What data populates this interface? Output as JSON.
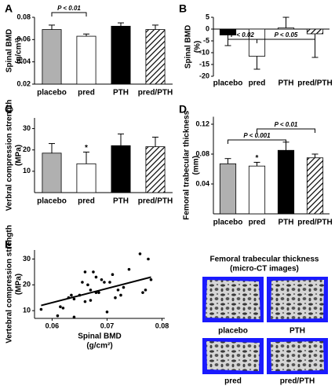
{
  "chart_data": [
    {
      "type": "bar",
      "panel": "A",
      "ylabel": [
        "Spinal BMD",
        "(g/cm²)"
      ],
      "categories": [
        "placebo",
        "pred",
        "PTH",
        "pred/PTH"
      ],
      "values": [
        0.069,
        0.063,
        0.072,
        0.069
      ],
      "errors": [
        0.004,
        0.002,
        0.003,
        0.004
      ],
      "colors": [
        "#b0b0b0",
        "#ffffff",
        "#000000",
        "hatch"
      ],
      "ylim": [
        0.02,
        0.08
      ],
      "yticks": [
        0.02,
        0.04,
        0.06,
        0.08
      ],
      "annotations": [
        "P < 0.01"
      ]
    },
    {
      "type": "bar",
      "panel": "B",
      "ylabel": [
        "Spinal BMD",
        "(%)"
      ],
      "categories": [
        "placebo",
        "pred",
        "PTH",
        "pred/PTH"
      ],
      "values": [
        -2.5,
        -11.5,
        0.5,
        -2
      ],
      "errors": [
        4.5,
        5.5,
        4.5,
        10
      ],
      "colors": [
        "#000000",
        "#ffffff",
        "#ffffff",
        "hatch"
      ],
      "ylim": [
        -20,
        5
      ],
      "yticks": [
        5,
        0,
        -5,
        -10,
        -15,
        -20
      ],
      "annotations": [
        "P < 0.02",
        "P < 0.05"
      ]
    },
    {
      "type": "bar",
      "panel": "C",
      "ylabel": [
        "Verbral compression strength",
        "(MPa)"
      ],
      "categories": [
        "placebo",
        "pred",
        "PTH",
        "pred/PTH"
      ],
      "values": [
        18.5,
        13.5,
        22,
        21.5
      ],
      "errors": [
        4.5,
        5.5,
        5.5,
        4.5
      ],
      "colors": [
        "#b0b0b0",
        "#ffffff",
        "#000000",
        "hatch"
      ],
      "ylim": [
        0,
        35
      ],
      "yticks": [
        10,
        20,
        30
      ],
      "annotations": [
        "*"
      ]
    },
    {
      "type": "bar",
      "panel": "D",
      "ylabel": [
        "Femoral trabecular thickness",
        "(mm)"
      ],
      "categories": [
        "placebo",
        "pred",
        "PTH",
        "pred/PTH"
      ],
      "values": [
        0.067,
        0.064,
        0.085,
        0.075
      ],
      "errors": [
        0.007,
        0.005,
        0.011,
        0.005
      ],
      "colors": [
        "#b0b0b0",
        "#ffffff",
        "#000000",
        "hatch"
      ],
      "ylim": [
        0,
        0.13
      ],
      "yticks": [
        0.04,
        0.08,
        0.12
      ],
      "annotations": [
        "P < 0.001",
        "P < 0.01",
        "*"
      ]
    },
    {
      "type": "scatter",
      "panel": "E",
      "ylabel": [
        "Vertebral compression strength",
        "(MPa)"
      ],
      "xlabel": [
        "Spinal BMD",
        "(g/cm²)"
      ],
      "x": [
        0.058,
        0.061,
        0.0615,
        0.062,
        0.063,
        0.0635,
        0.064,
        0.064,
        0.065,
        0.0655,
        0.066,
        0.066,
        0.0665,
        0.067,
        0.067,
        0.0675,
        0.068,
        0.068,
        0.0685,
        0.069,
        0.0695,
        0.07,
        0.0705,
        0.071,
        0.0715,
        0.072,
        0.0725,
        0.073,
        0.074,
        0.076,
        0.0765,
        0.077,
        0.0775,
        0.078
      ],
      "y": [
        10.5,
        8,
        11.5,
        11,
        15,
        16,
        14.5,
        7.5,
        16,
        21,
        25,
        13.5,
        20,
        18,
        14,
        25,
        23,
        17,
        17,
        22,
        21,
        9.5,
        21,
        24,
        15,
        18,
        16,
        19,
        26,
        32,
        17,
        18,
        30,
        22
      ],
      "trend": {
        "x": [
          0.058,
          0.078
        ],
        "y": [
          12,
          23
        ]
      },
      "color": "#000000",
      "xlim": [
        0.0568,
        0.0805
      ],
      "xticks": [
        0.06,
        0.07,
        0.08
      ],
      "ylim": [
        7,
        33.5
      ],
      "yticks": [
        10,
        20,
        30
      ]
    }
  ],
  "micro_ct": {
    "title": [
      "Femoral trabecular thickness",
      "(micro-CT images)"
    ],
    "labels": [
      "placebo",
      "PTH",
      "pred",
      "pred/PTH"
    ]
  }
}
